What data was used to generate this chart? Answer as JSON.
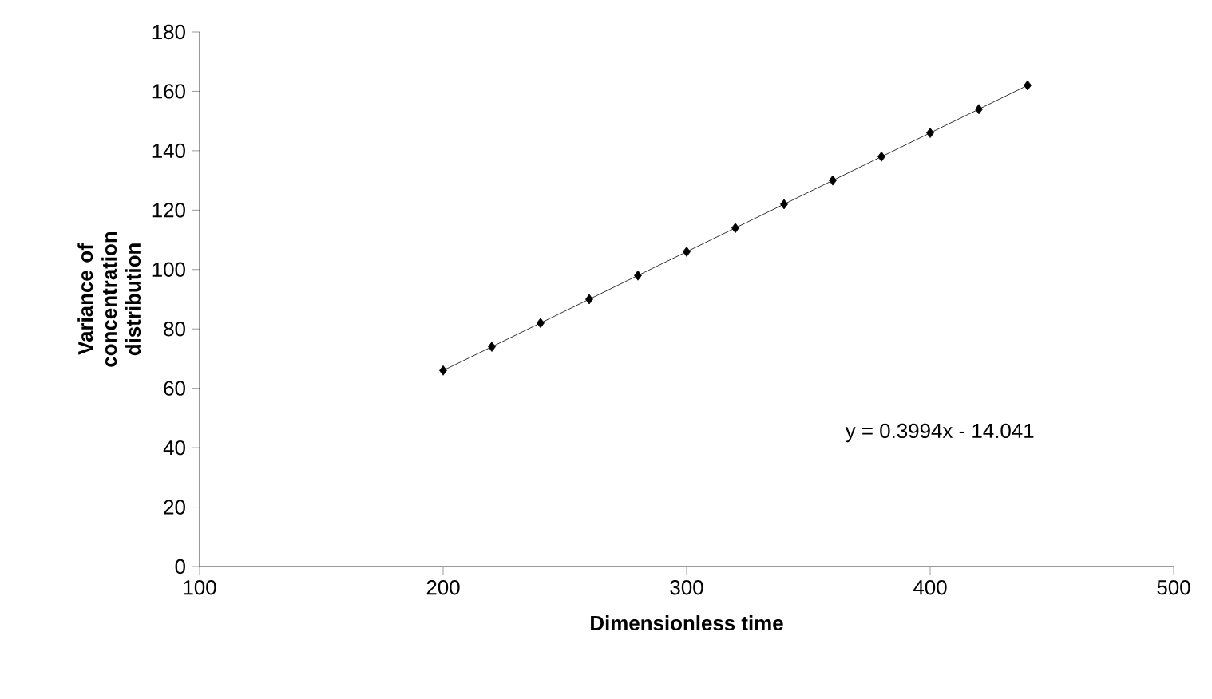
{
  "chart_data": {
    "type": "line",
    "xlabel": "Dimensionless time",
    "ylabel": "Variance of concentration distribution",
    "x": [
      200,
      220,
      240,
      260,
      280,
      300,
      320,
      340,
      360,
      380,
      400,
      420,
      440
    ],
    "series": [
      {
        "color": "#000000",
        "values": [
          66,
          74,
          82,
          90,
          98,
          106,
          114,
          122,
          130,
          138,
          146,
          154,
          162
        ]
      }
    ],
    "xlim": [
      100,
      500
    ],
    "xticks": [
      100,
      200,
      300,
      400,
      500
    ],
    "ylim": [
      0,
      180
    ],
    "yticks": [
      0,
      20,
      40,
      60,
      80,
      100,
      120,
      140,
      160,
      180
    ],
    "marker": "diamond",
    "line_style": "solid",
    "annotations": [
      "y = 0.3994x - 14.041"
    ]
  }
}
